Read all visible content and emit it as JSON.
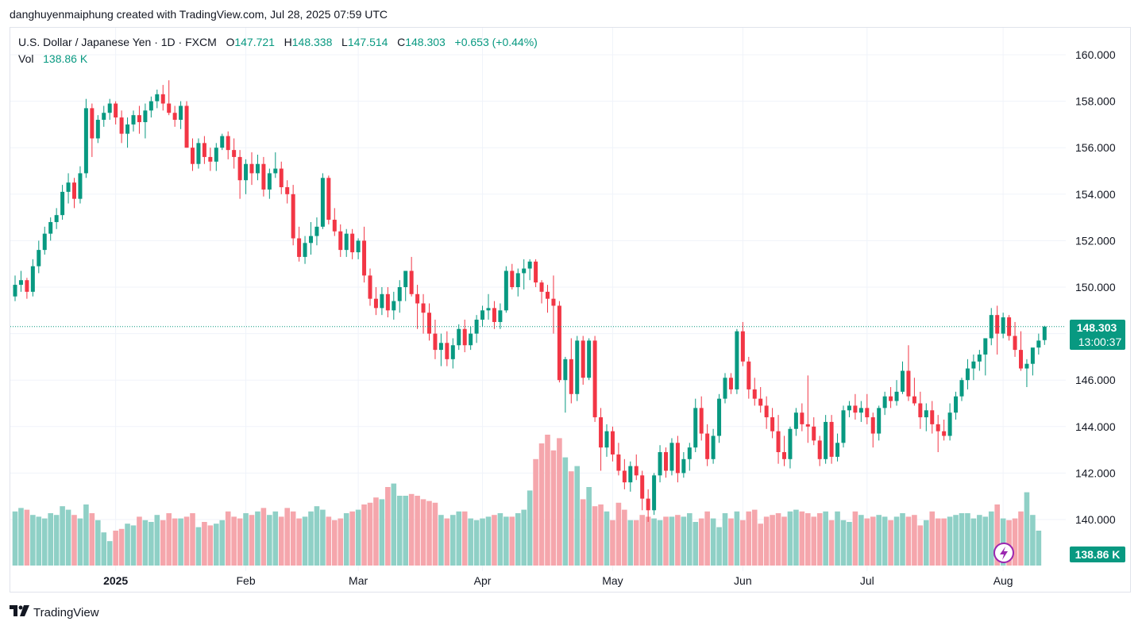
{
  "header": {
    "attribution": "danghuyenmaiphung created with TradingView.com, Jul 28, 2025 07:59 UTC"
  },
  "legend": {
    "symbol": "U.S. Dollar / Japanese Yen · 1D · FXCM",
    "o_label": "O",
    "o_value": "147.721",
    "h_label": "H",
    "h_value": "148.338",
    "l_label": "L",
    "l_value": "147.514",
    "c_label": "C",
    "c_value": "148.303",
    "change": "+0.653 (+0.44%)",
    "vol_label": "Vol",
    "vol_value": "138.86 K"
  },
  "price_badge": {
    "price": "148.303",
    "countdown": "13:00:37"
  },
  "vol_badge": "138.86 K",
  "footer": {
    "brand": "TradingView"
  },
  "colors": {
    "up": "#089981",
    "down": "#f23645",
    "up_vol": "#8fd0c6",
    "down_vol": "#f5a6ac",
    "accent_purple": "#9c27b0"
  },
  "icons": {
    "flash": "lightning-icon",
    "logo": "tradingview-logo-icon"
  },
  "chart_data": {
    "type": "candlestick",
    "y_ticks": [
      "160.000",
      "158.000",
      "156.000",
      "154.000",
      "152.000",
      "150.000",
      "146.000",
      "144.000",
      "142.000",
      "140.000"
    ],
    "x_ticks": [
      {
        "label": "2025",
        "bold": true,
        "index": 17
      },
      {
        "label": "Feb",
        "bold": false,
        "index": 39
      },
      {
        "label": "Mar",
        "bold": false,
        "index": 58
      },
      {
        "label": "Apr",
        "bold": false,
        "index": 79
      },
      {
        "label": "May",
        "bold": false,
        "index": 101
      },
      {
        "label": "Jun",
        "bold": false,
        "index": 123
      },
      {
        "label": "Jul",
        "bold": false,
        "index": 144
      },
      {
        "label": "Aug",
        "bold": false,
        "index": 167
      }
    ],
    "ylim": [
      138.0,
      161.0
    ],
    "last_price": 148.303,
    "candles": [
      [
        149.6,
        150.5,
        149.4,
        150.1
      ],
      [
        150.1,
        150.7,
        149.8,
        150.3
      ],
      [
        150.3,
        150.4,
        149.5,
        149.8
      ],
      [
        149.8,
        151.2,
        149.6,
        150.9
      ],
      [
        150.9,
        152.0,
        150.6,
        151.6
      ],
      [
        151.6,
        152.6,
        151.4,
        152.3
      ],
      [
        152.3,
        153.0,
        152.0,
        152.8
      ],
      [
        152.8,
        153.4,
        152.5,
        153.1
      ],
      [
        153.1,
        154.4,
        152.9,
        154.1
      ],
      [
        154.1,
        154.9,
        153.6,
        154.5
      ],
      [
        154.5,
        154.7,
        153.4,
        153.8
      ],
      [
        153.8,
        155.2,
        153.6,
        154.9
      ],
      [
        154.9,
        158.1,
        154.7,
        157.7
      ],
      [
        157.7,
        157.9,
        155.6,
        156.4
      ],
      [
        156.4,
        157.4,
        156.2,
        157.2
      ],
      [
        157.2,
        157.8,
        156.9,
        157.5
      ],
      [
        157.5,
        158.1,
        157.2,
        157.9
      ],
      [
        157.9,
        158.0,
        157.0,
        157.3
      ],
      [
        157.3,
        157.6,
        156.2,
        156.6
      ],
      [
        156.6,
        157.3,
        156.0,
        157.0
      ],
      [
        157.0,
        157.6,
        156.7,
        157.4
      ],
      [
        157.4,
        157.8,
        156.6,
        157.1
      ],
      [
        157.1,
        157.9,
        156.4,
        157.6
      ],
      [
        157.6,
        158.2,
        157.3,
        158.0
      ],
      [
        158.0,
        158.5,
        157.7,
        158.3
      ],
      [
        158.3,
        158.7,
        157.6,
        157.9
      ],
      [
        157.9,
        158.9,
        157.4,
        157.5
      ],
      [
        157.5,
        157.8,
        156.9,
        157.2
      ],
      [
        157.2,
        158.0,
        156.8,
        157.8
      ],
      [
        157.8,
        158.0,
        156.0,
        156.0
      ],
      [
        156.0,
        156.4,
        155.0,
        155.3
      ],
      [
        155.3,
        156.4,
        155.1,
        156.2
      ],
      [
        156.2,
        156.5,
        155.3,
        155.6
      ],
      [
        155.6,
        156.0,
        155.0,
        155.4
      ],
      [
        155.4,
        156.2,
        155.0,
        156.0
      ],
      [
        156.0,
        156.6,
        155.9,
        156.5
      ],
      [
        156.5,
        156.7,
        155.5,
        155.9
      ],
      [
        155.9,
        156.4,
        155.1,
        155.6
      ],
      [
        155.6,
        155.9,
        153.8,
        154.6
      ],
      [
        154.6,
        155.5,
        154.0,
        155.3
      ],
      [
        155.3,
        155.8,
        154.4,
        154.9
      ],
      [
        154.9,
        155.7,
        154.6,
        155.3
      ],
      [
        155.3,
        155.6,
        153.9,
        154.2
      ],
      [
        154.2,
        155.1,
        153.8,
        154.9
      ],
      [
        154.9,
        155.8,
        154.7,
        155.1
      ],
      [
        155.1,
        155.4,
        154.0,
        154.3
      ],
      [
        154.3,
        154.6,
        153.6,
        154.0
      ],
      [
        154.0,
        154.4,
        151.8,
        152.1
      ],
      [
        152.1,
        152.6,
        151.1,
        151.3
      ],
      [
        151.3,
        152.2,
        151.0,
        151.9
      ],
      [
        151.9,
        152.8,
        151.4,
        152.2
      ],
      [
        152.2,
        153.0,
        151.8,
        152.6
      ],
      [
        152.6,
        154.9,
        152.5,
        154.7
      ],
      [
        154.7,
        154.8,
        152.7,
        152.9
      ],
      [
        152.9,
        153.4,
        152.2,
        152.4
      ],
      [
        152.4,
        152.7,
        151.3,
        151.6
      ],
      [
        151.6,
        152.5,
        151.3,
        152.3
      ],
      [
        152.3,
        152.5,
        151.2,
        151.5
      ],
      [
        151.5,
        152.1,
        151.2,
        152.0
      ],
      [
        152.0,
        152.6,
        150.2,
        150.5
      ],
      [
        150.5,
        150.8,
        149.2,
        149.5
      ],
      [
        149.5,
        150.0,
        148.8,
        149.1
      ],
      [
        149.1,
        150.0,
        148.8,
        149.7
      ],
      [
        149.7,
        150.0,
        148.7,
        149.0
      ],
      [
        149.0,
        149.8,
        148.6,
        149.4
      ],
      [
        149.4,
        150.3,
        148.9,
        150.0
      ],
      [
        150.0,
        150.7,
        149.4,
        150.7
      ],
      [
        150.7,
        151.3,
        149.6,
        149.7
      ],
      [
        149.7,
        150.1,
        148.2,
        149.3
      ],
      [
        149.3,
        149.7,
        148.0,
        148.9
      ],
      [
        148.9,
        149.3,
        147.7,
        148.0
      ],
      [
        148.0,
        148.6,
        146.9,
        147.3
      ],
      [
        147.3,
        148.0,
        146.6,
        147.6
      ],
      [
        147.6,
        148.1,
        146.6,
        146.9
      ],
      [
        146.9,
        147.8,
        146.5,
        147.5
      ],
      [
        147.5,
        148.4,
        147.3,
        148.2
      ],
      [
        148.2,
        148.6,
        147.2,
        147.5
      ],
      [
        147.5,
        148.3,
        147.3,
        148.0
      ],
      [
        148.0,
        148.8,
        147.6,
        148.6
      ],
      [
        148.6,
        149.2,
        148.3,
        149.0
      ],
      [
        149.0,
        149.7,
        148.6,
        149.1
      ],
      [
        149.1,
        149.4,
        148.2,
        148.5
      ],
      [
        148.5,
        149.3,
        148.2,
        149.0
      ],
      [
        149.0,
        150.9,
        148.9,
        150.7
      ],
      [
        150.7,
        151.0,
        149.9,
        150.0
      ],
      [
        150.0,
        150.8,
        149.6,
        150.6
      ],
      [
        150.6,
        151.2,
        149.9,
        150.8
      ],
      [
        150.8,
        151.2,
        150.3,
        151.1
      ],
      [
        151.1,
        151.2,
        150.0,
        150.2
      ],
      [
        150.2,
        150.3,
        149.3,
        149.8
      ],
      [
        149.8,
        150.1,
        148.9,
        149.5
      ],
      [
        149.5,
        150.5,
        148.0,
        149.2
      ],
      [
        149.2,
        149.4,
        145.9,
        146.0
      ],
      [
        146.0,
        147.0,
        144.6,
        146.9
      ],
      [
        146.9,
        147.8,
        145.0,
        145.4
      ],
      [
        145.4,
        147.9,
        145.1,
        147.7
      ],
      [
        147.7,
        147.9,
        145.8,
        146.1
      ],
      [
        146.1,
        147.8,
        146.0,
        147.7
      ],
      [
        147.7,
        147.9,
        144.2,
        144.4
      ],
      [
        144.4,
        144.8,
        142.1,
        143.1
      ],
      [
        143.1,
        144.1,
        142.7,
        143.8
      ],
      [
        143.8,
        144.0,
        142.5,
        142.8
      ],
      [
        142.8,
        143.3,
        141.9,
        142.1
      ],
      [
        142.1,
        142.6,
        141.3,
        141.6
      ],
      [
        141.6,
        142.5,
        141.2,
        142.3
      ],
      [
        142.3,
        142.8,
        141.7,
        141.9
      ],
      [
        141.9,
        142.1,
        140.4,
        140.9
      ],
      [
        140.9,
        141.3,
        139.9,
        140.4
      ],
      [
        140.4,
        142.0,
        140.2,
        141.9
      ],
      [
        141.9,
        143.2,
        141.6,
        142.9
      ],
      [
        142.9,
        143.1,
        141.8,
        142.1
      ],
      [
        142.1,
        143.5,
        141.9,
        143.3
      ],
      [
        143.3,
        143.6,
        141.6,
        142.0
      ],
      [
        142.0,
        142.9,
        141.8,
        142.6
      ],
      [
        142.6,
        143.3,
        142.1,
        143.1
      ],
      [
        143.1,
        145.2,
        142.9,
        144.8
      ],
      [
        144.8,
        145.3,
        143.4,
        143.7
      ],
      [
        143.7,
        144.1,
        142.3,
        142.6
      ],
      [
        142.6,
        143.9,
        142.4,
        143.6
      ],
      [
        143.6,
        145.4,
        143.3,
        145.2
      ],
      [
        145.2,
        146.3,
        145.0,
        146.1
      ],
      [
        146.1,
        146.3,
        145.4,
        145.6
      ],
      [
        145.6,
        148.2,
        145.4,
        148.1
      ],
      [
        148.1,
        148.5,
        146.6,
        146.8
      ],
      [
        146.8,
        147.0,
        145.2,
        145.6
      ],
      [
        145.6,
        146.1,
        144.9,
        145.2
      ],
      [
        145.2,
        145.7,
        144.6,
        144.9
      ],
      [
        144.9,
        145.3,
        143.9,
        144.4
      ],
      [
        144.4,
        144.8,
        143.5,
        143.8
      ],
      [
        143.8,
        144.5,
        142.4,
        142.9
      ],
      [
        142.9,
        143.6,
        142.3,
        142.6
      ],
      [
        142.6,
        144.0,
        142.2,
        143.9
      ],
      [
        143.9,
        144.8,
        143.6,
        144.6
      ],
      [
        144.6,
        145.0,
        143.8,
        144.1
      ],
      [
        144.1,
        146.2,
        143.3,
        144.0
      ],
      [
        144.0,
        144.4,
        143.2,
        143.4
      ],
      [
        143.4,
        143.6,
        142.3,
        142.6
      ],
      [
        142.6,
        144.5,
        142.4,
        144.2
      ],
      [
        144.2,
        144.5,
        142.4,
        142.7
      ],
      [
        142.7,
        143.7,
        142.5,
        143.3
      ],
      [
        143.3,
        144.9,
        143.1,
        144.7
      ],
      [
        144.7,
        145.1,
        144.4,
        144.9
      ],
      [
        144.9,
        145.4,
        144.3,
        144.6
      ],
      [
        144.6,
        145.1,
        144.2,
        144.8
      ],
      [
        144.8,
        145.4,
        144.1,
        144.4
      ],
      [
        144.4,
        144.6,
        143.1,
        143.7
      ],
      [
        143.7,
        144.9,
        143.4,
        144.8
      ],
      [
        144.8,
        145.5,
        144.5,
        145.3
      ],
      [
        145.3,
        145.7,
        144.8,
        145.1
      ],
      [
        145.1,
        146.0,
        144.9,
        145.5
      ],
      [
        145.5,
        146.8,
        145.4,
        146.4
      ],
      [
        146.4,
        147.5,
        145.1,
        145.3
      ],
      [
        145.3,
        146.1,
        144.9,
        145.0
      ],
      [
        145.0,
        145.5,
        143.9,
        144.4
      ],
      [
        144.4,
        145.0,
        143.8,
        144.7
      ],
      [
        144.7,
        145.1,
        143.7,
        144.1
      ],
      [
        144.1,
        144.5,
        142.9,
        143.8
      ],
      [
        143.8,
        144.3,
        143.4,
        143.6
      ],
      [
        143.6,
        145.0,
        143.4,
        144.6
      ],
      [
        144.6,
        145.5,
        144.3,
        145.3
      ],
      [
        145.3,
        146.1,
        145.1,
        146.0
      ],
      [
        146.0,
        146.9,
        145.6,
        146.5
      ],
      [
        146.5,
        147.1,
        146.0,
        146.8
      ],
      [
        146.8,
        147.3,
        146.4,
        147.1
      ],
      [
        147.1,
        147.8,
        146.2,
        147.8
      ],
      [
        147.8,
        149.1,
        147.5,
        148.8
      ],
      [
        148.8,
        149.2,
        147.1,
        148.0
      ],
      [
        148.0,
        148.9,
        147.8,
        148.7
      ],
      [
        148.7,
        148.8,
        147.7,
        147.9
      ],
      [
        147.9,
        148.5,
        147.0,
        147.3
      ],
      [
        147.3,
        148.1,
        146.4,
        146.5
      ],
      [
        146.5,
        146.9,
        145.7,
        146.7
      ],
      [
        146.7,
        147.3,
        146.2,
        147.4
      ],
      [
        147.4,
        148.0,
        147.1,
        147.7
      ],
      [
        147.721,
        148.338,
        147.514,
        148.303
      ]
    ],
    "volumes": [
      0.31,
      0.33,
      0.32,
      0.29,
      0.28,
      0.27,
      0.3,
      0.29,
      0.34,
      0.32,
      0.29,
      0.27,
      0.35,
      0.3,
      0.26,
      0.19,
      0.14,
      0.2,
      0.21,
      0.24,
      0.23,
      0.28,
      0.26,
      0.25,
      0.29,
      0.26,
      0.3,
      0.27,
      0.27,
      0.28,
      0.3,
      0.22,
      0.25,
      0.23,
      0.24,
      0.26,
      0.31,
      0.28,
      0.27,
      0.3,
      0.29,
      0.31,
      0.33,
      0.29,
      0.31,
      0.28,
      0.33,
      0.31,
      0.27,
      0.28,
      0.31,
      0.34,
      0.32,
      0.28,
      0.26,
      0.27,
      0.3,
      0.31,
      0.32,
      0.35,
      0.36,
      0.39,
      0.38,
      0.45,
      0.47,
      0.4,
      0.4,
      0.41,
      0.4,
      0.38,
      0.37,
      0.36,
      0.29,
      0.27,
      0.29,
      0.31,
      0.31,
      0.27,
      0.26,
      0.27,
      0.28,
      0.29,
      0.3,
      0.28,
      0.28,
      0.3,
      0.32,
      0.43,
      0.61,
      0.7,
      0.75,
      0.66,
      0.73,
      0.62,
      0.54,
      0.57,
      0.38,
      0.45,
      0.34,
      0.35,
      0.31,
      0.26,
      0.36,
      0.32,
      0.26,
      0.26,
      0.29,
      0.28,
      0.27,
      0.26,
      0.28,
      0.28,
      0.29,
      0.28,
      0.3,
      0.25,
      0.27,
      0.31,
      0.27,
      0.22,
      0.3,
      0.27,
      0.31,
      0.26,
      0.31,
      0.32,
      0.24,
      0.28,
      0.29,
      0.3,
      0.28,
      0.31,
      0.32,
      0.31,
      0.3,
      0.28,
      0.3,
      0.31,
      0.26,
      0.31,
      0.26,
      0.25,
      0.31,
      0.29,
      0.27,
      0.28,
      0.29,
      0.28,
      0.26,
      0.28,
      0.3,
      0.28,
      0.29,
      0.23,
      0.26,
      0.31,
      0.27,
      0.27,
      0.28,
      0.29,
      0.3,
      0.3,
      0.27,
      0.29,
      0.28,
      0.31,
      0.35,
      0.27,
      0.26,
      0.27,
      0.31,
      0.42,
      0.29,
      0.2
    ]
  }
}
